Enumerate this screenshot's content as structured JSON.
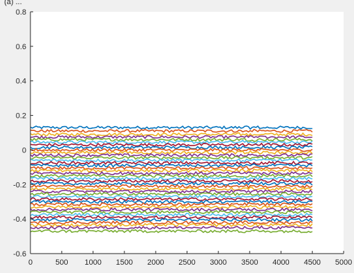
{
  "header_fragment": "(a) ...",
  "chart_data": {
    "type": "line",
    "title": "",
    "xlabel": "",
    "ylabel": "",
    "xlim": [
      0,
      5000
    ],
    "ylim": [
      -0.6,
      0.8
    ],
    "xticks": [
      0,
      500,
      1000,
      1500,
      2000,
      2500,
      3000,
      3500,
      4000,
      4500,
      5000
    ],
    "yticks": [
      -0.6,
      -0.4,
      -0.2,
      0,
      0.2,
      0.4,
      0.6,
      0.8
    ],
    "ytick_labels": [
      "-0.6",
      "-0.4",
      "-0.2",
      "0",
      "0.2",
      "0.4",
      "0.6",
      "0.8"
    ],
    "grid": false,
    "legend": "none",
    "x_range_of_data": [
      0,
      4500
    ],
    "series_color_cycle": [
      "#0072bd",
      "#d95319",
      "#edb120",
      "#7e2f8e",
      "#77ac30",
      "#4dbeee",
      "#a2142f"
    ],
    "series_levels": [
      0.13,
      0.11,
      0.09,
      0.075,
      0.06,
      0.045,
      0.03,
      0.015,
      0.0,
      -0.015,
      -0.03,
      -0.045,
      -0.06,
      -0.075,
      -0.09,
      -0.105,
      -0.12,
      -0.135,
      -0.15,
      -0.165,
      -0.18,
      -0.195,
      -0.21,
      -0.225,
      -0.24,
      -0.255,
      -0.27,
      -0.285,
      -0.3,
      -0.315,
      -0.33,
      -0.345,
      -0.36,
      -0.375,
      -0.39,
      -0.405,
      -0.42,
      -0.435,
      -0.45,
      -0.47
    ],
    "series_noise_amplitude": 0.008
  }
}
